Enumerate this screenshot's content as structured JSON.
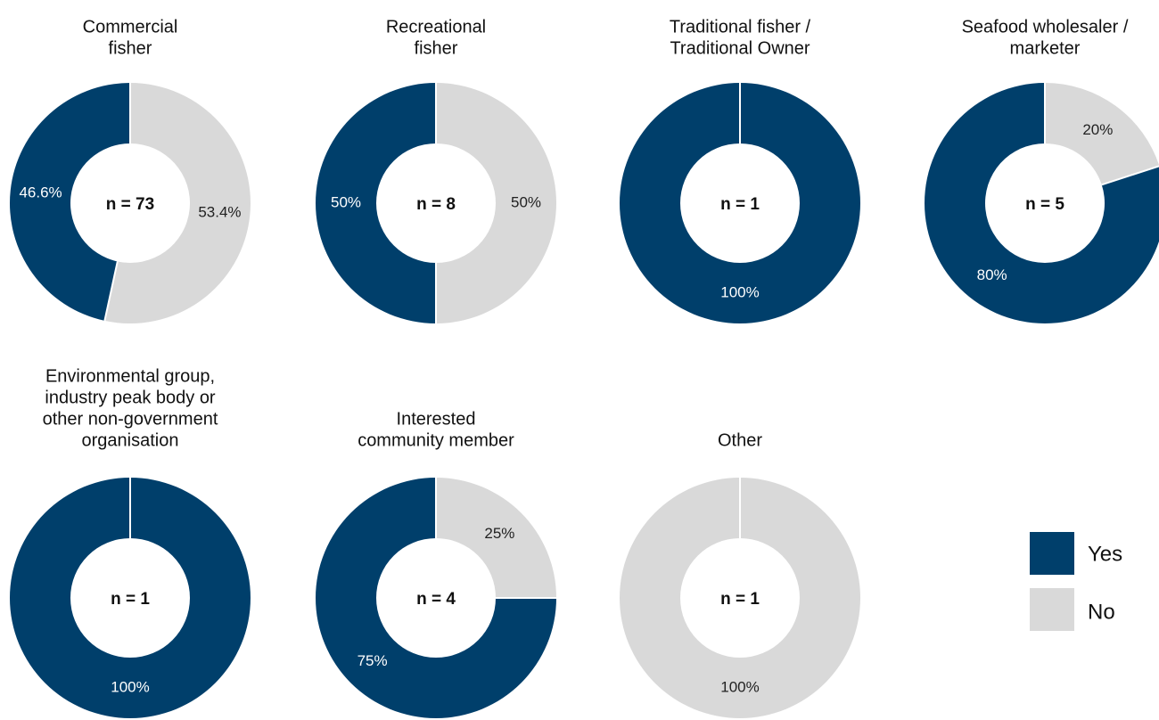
{
  "chart_data": [
    {
      "type": "pie",
      "title": [
        "Commercial",
        "fisher"
      ],
      "center_label": "n = 73",
      "categories": [
        "Yes",
        "No"
      ],
      "values": [
        46.6,
        53.4
      ],
      "value_labels": [
        "46.6%",
        "53.4%"
      ],
      "colors": [
        "#003f6b",
        "#d9d9d9"
      ]
    },
    {
      "type": "pie",
      "title": [
        "Recreational",
        "fisher"
      ],
      "center_label": "n = 8",
      "categories": [
        "Yes",
        "No"
      ],
      "values": [
        50,
        50
      ],
      "value_labels": [
        "50%",
        "50%"
      ],
      "colors": [
        "#003f6b",
        "#d9d9d9"
      ]
    },
    {
      "type": "pie",
      "title": [
        "Traditional fisher /",
        "Traditional Owner"
      ],
      "center_label": "n = 1",
      "categories": [
        "Yes",
        "No"
      ],
      "values": [
        100,
        0
      ],
      "value_labels": [
        "100%",
        null
      ],
      "colors": [
        "#003f6b",
        "#d9d9d9"
      ]
    },
    {
      "type": "pie",
      "title": [
        "Seafood wholesaler /",
        "marketer"
      ],
      "center_label": "n = 5",
      "categories": [
        "Yes",
        "No"
      ],
      "values": [
        80,
        20
      ],
      "value_labels": [
        "80%",
        "20%"
      ],
      "colors": [
        "#003f6b",
        "#d9d9d9"
      ]
    },
    {
      "type": "pie",
      "title": [
        "Environmental group,",
        "industry peak body or",
        "other non-government",
        "organisation"
      ],
      "center_label": "n = 1",
      "categories": [
        "Yes",
        "No"
      ],
      "values": [
        100,
        0
      ],
      "value_labels": [
        "100%",
        null
      ],
      "colors": [
        "#003f6b",
        "#d9d9d9"
      ]
    },
    {
      "type": "pie",
      "title": [
        "Interested",
        "community member"
      ],
      "center_label": "n = 4",
      "categories": [
        "Yes",
        "No"
      ],
      "values": [
        75,
        25
      ],
      "value_labels": [
        "75%",
        "25%"
      ],
      "colors": [
        "#003f6b",
        "#d9d9d9"
      ]
    },
    {
      "type": "pie",
      "title": [
        "Other"
      ],
      "center_label": "n = 1",
      "categories": [
        "Yes",
        "No"
      ],
      "values": [
        0,
        100
      ],
      "value_labels": [
        null,
        "100%"
      ],
      "colors": [
        "#003f6b",
        "#d9d9d9"
      ]
    }
  ]
}
